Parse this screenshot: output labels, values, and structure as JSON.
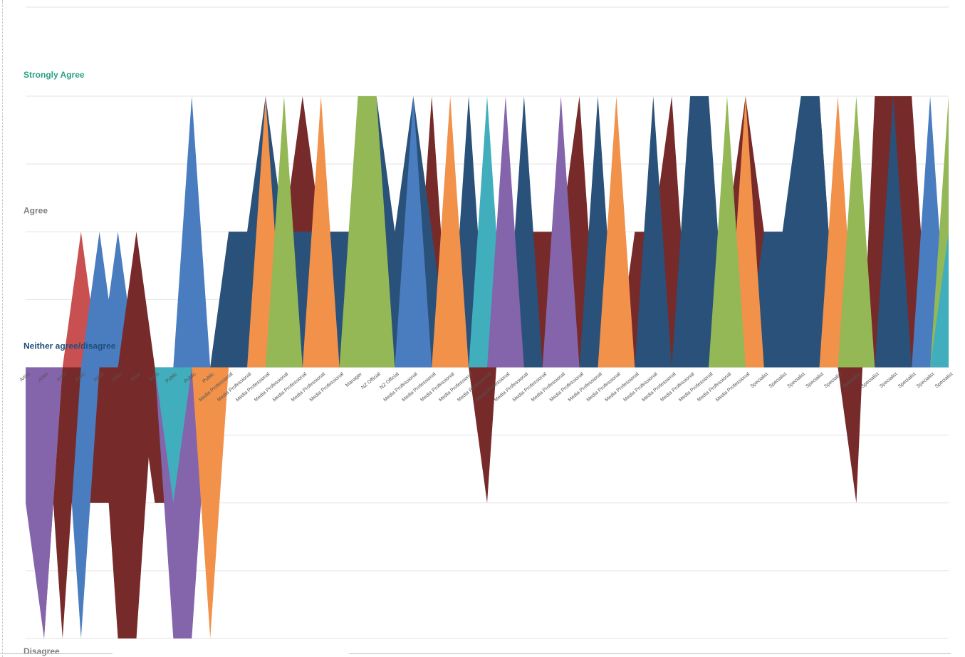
{
  "chart_data": {
    "type": "area",
    "y_levels": [
      "Disagree",
      "Neither agree/disagree",
      "Agree",
      "Strongly Agree"
    ],
    "ylim": [
      1,
      5
    ],
    "grid": true,
    "legend": "none",
    "colors": {
      "maroon": "#772a2a",
      "navy": "#29517a",
      "blue": "#4a7cc0",
      "orange": "#f1914a",
      "green": "#93b855",
      "teal": "#40aebd",
      "purple": "#8464ab",
      "red": "#c95050",
      "level_strongly_agree": "#2aa184",
      "level_neither": "#1f4e79",
      "level_other": "#7f7f7f"
    },
    "categories": [
      "Artist",
      "Artist",
      "Artist",
      "Artist",
      "Artist",
      "Artist",
      "Artist",
      "Artist",
      "Public",
      "Public",
      "Public",
      "Media Professional",
      "Media Professional",
      "Media Professional",
      "Media Professional",
      "Media Professional",
      "Media Professional",
      "Media Professional",
      "Manager",
      "NZ Official",
      "NZ Official",
      "Media Professional",
      "Media Professional",
      "Media Professional",
      "Media Professional",
      "Media Professional",
      "Media Professional",
      "Media Professional",
      "Media Professional",
      "Media Professional",
      "Media Professional",
      "Media Professional",
      "Media Professional",
      "Media Professional",
      "Media Professional",
      "Media Professional",
      "Media Professional",
      "Media Professional",
      "Media Professional",
      "Media Professional",
      "Specialist",
      "Specialist",
      "Specialist",
      "Specialist",
      "Specialist",
      "Specialist",
      "Specialist",
      "Specialist",
      "Specialist",
      "Specialist",
      "Specialist"
    ],
    "series": [
      {
        "color": "maroon",
        "values": [
          2,
          2,
          2,
          2,
          2,
          2,
          3,
          2,
          2,
          2,
          3,
          4,
          4,
          4,
          4,
          5,
          4,
          4,
          4,
          3,
          3,
          3,
          5,
          3,
          3,
          2,
          4,
          4,
          4,
          4,
          5,
          3,
          3,
          4,
          4,
          5,
          3,
          4,
          4,
          5,
          4,
          4,
          3,
          5,
          3,
          2,
          5,
          5,
          5,
          3,
          3
        ]
      },
      {
        "color": "navy",
        "values": [
          3,
          3,
          3,
          3,
          3,
          3,
          3,
          3,
          3,
          4,
          3,
          4,
          4,
          5,
          4,
          4,
          4,
          4,
          4,
          5,
          4,
          5,
          4,
          3,
          5,
          3,
          3,
          5,
          3,
          3,
          3,
          5,
          3,
          3,
          5,
          3,
          5,
          5,
          3,
          3,
          4,
          4,
          5,
          5,
          3,
          3,
          3,
          5,
          3,
          3,
          3
        ]
      },
      {
        "color": "blue",
        "values": [
          3,
          3,
          3,
          3,
          3,
          4,
          3,
          3,
          3,
          5,
          3,
          3,
          3,
          3,
          3,
          3,
          3,
          3,
          3,
          3,
          3,
          5,
          3,
          3,
          3,
          3,
          3,
          3,
          3,
          3,
          3,
          3,
          3,
          3,
          3,
          3,
          3,
          3,
          3,
          3,
          3,
          3,
          3,
          3,
          3,
          3,
          3,
          3,
          3,
          5,
          3
        ]
      },
      {
        "color": "orange",
        "values": [
          3,
          3,
          3,
          3,
          3,
          3,
          3,
          3,
          3,
          3,
          3,
          3,
          3,
          5,
          3,
          3,
          5,
          3,
          3,
          3,
          3,
          3,
          3,
          5,
          3,
          3,
          3,
          3,
          3,
          3,
          3,
          3,
          5,
          3,
          3,
          3,
          3,
          3,
          3,
          5,
          3,
          3,
          3,
          3,
          5,
          3,
          3,
          3,
          3,
          3,
          3
        ]
      },
      {
        "color": "green",
        "values": [
          3,
          3,
          3,
          3,
          3,
          3,
          3,
          3,
          3,
          3,
          3,
          3,
          3,
          3,
          5,
          3,
          3,
          3,
          5,
          5,
          3,
          3,
          3,
          3,
          3,
          3,
          3,
          3,
          3,
          3,
          3,
          3,
          3,
          3,
          3,
          3,
          3,
          3,
          5,
          3,
          3,
          3,
          3,
          3,
          3,
          5,
          3,
          3,
          3,
          3,
          5
        ]
      },
      {
        "color": "teal",
        "values": [
          3,
          3,
          3,
          3,
          3,
          3,
          3,
          3,
          3,
          3,
          3,
          3,
          3,
          3,
          3,
          3,
          3,
          3,
          3,
          3,
          3,
          3,
          3,
          3,
          3,
          5,
          3,
          3,
          3,
          3,
          3,
          3,
          3,
          3,
          3,
          3,
          3,
          3,
          3,
          3,
          3,
          3,
          3,
          3,
          3,
          3,
          3,
          3,
          3,
          3,
          4
        ]
      },
      {
        "color": "purple",
        "values": [
          3,
          3,
          3,
          3,
          3,
          3,
          3,
          3,
          3,
          3,
          3,
          3,
          3,
          3,
          3,
          3,
          3,
          3,
          3,
          3,
          3,
          3,
          3,
          3,
          3,
          3,
          5,
          3,
          3,
          5,
          3,
          3,
          3,
          3,
          3,
          3,
          3,
          3,
          3,
          3,
          3,
          3,
          3,
          3,
          3,
          3,
          3,
          3,
          3,
          3,
          3
        ]
      },
      {
        "color": "red",
        "values": [
          3,
          3,
          3,
          4,
          3,
          3,
          3,
          3,
          3,
          3,
          3,
          3,
          3,
          3,
          3,
          3,
          3,
          3,
          3,
          3,
          3,
          3,
          3,
          3,
          3,
          3,
          3,
          3,
          3,
          3,
          3,
          3,
          3,
          3,
          3,
          3,
          3,
          3,
          3,
          3,
          3,
          3,
          3,
          3,
          3,
          3,
          3,
          3,
          3,
          3,
          3
        ]
      },
      {
        "color": "blue",
        "values": [
          3,
          3,
          3,
          3,
          4,
          3,
          3,
          3,
          3,
          3,
          3,
          3,
          3,
          3,
          3,
          3,
          3,
          3,
          3,
          3,
          3,
          3,
          3,
          3,
          3,
          3,
          3,
          3,
          3,
          3,
          3,
          3,
          3,
          3,
          3,
          3,
          3,
          3,
          3,
          3,
          3,
          3,
          3,
          3,
          3,
          3,
          3,
          3,
          3,
          3,
          3
        ]
      },
      {
        "color": "maroon",
        "values": [
          3,
          3,
          3,
          3,
          3,
          3,
          4,
          3,
          3,
          3,
          3,
          3,
          3,
          3,
          3,
          3,
          3,
          3,
          3,
          3,
          3,
          3,
          3,
          3,
          3,
          3,
          3,
          3,
          3,
          3,
          3,
          3,
          3,
          3,
          3,
          3,
          3,
          3,
          3,
          3,
          3,
          3,
          3,
          3,
          3,
          3,
          3,
          3,
          3,
          3,
          3
        ]
      },
      {
        "color": "purple",
        "values": [
          3,
          1,
          3,
          3,
          3,
          3,
          3,
          3,
          1,
          1,
          3,
          3,
          3,
          3,
          3,
          3,
          3,
          3,
          3,
          3,
          3,
          3,
          3,
          3,
          3,
          3,
          3,
          3,
          3,
          3,
          3,
          3,
          3,
          3,
          3,
          3,
          3,
          3,
          3,
          3,
          3,
          3,
          3,
          3,
          3,
          3,
          3,
          3,
          3,
          3,
          3
        ]
      },
      {
        "color": "orange",
        "values": [
          3,
          3,
          3,
          3,
          3,
          3,
          3,
          3,
          3,
          3,
          1,
          3,
          3,
          3,
          3,
          3,
          3,
          3,
          3,
          3,
          3,
          3,
          3,
          3,
          3,
          3,
          3,
          3,
          3,
          3,
          3,
          3,
          3,
          3,
          3,
          3,
          3,
          3,
          3,
          3,
          3,
          3,
          3,
          3,
          3,
          3,
          3,
          3,
          3,
          3,
          3
        ]
      },
      {
        "color": "teal",
        "values": [
          3,
          3,
          3,
          3,
          3,
          3,
          3,
          3,
          2,
          3,
          3,
          3,
          3,
          3,
          3,
          3,
          3,
          3,
          3,
          3,
          3,
          3,
          3,
          3,
          3,
          3,
          3,
          3,
          3,
          3,
          3,
          3,
          3,
          3,
          3,
          3,
          3,
          3,
          3,
          3,
          3,
          3,
          3,
          3,
          3,
          3,
          3,
          3,
          3,
          3,
          3
        ]
      },
      {
        "color": "blue",
        "values": [
          3,
          3,
          3,
          1,
          3,
          3,
          3,
          3,
          3,
          3,
          3,
          3,
          3,
          3,
          3,
          3,
          3,
          3,
          3,
          3,
          3,
          3,
          3,
          3,
          3,
          3,
          3,
          3,
          3,
          3,
          3,
          3,
          3,
          3,
          3,
          3,
          3,
          3,
          3,
          3,
          3,
          3,
          3,
          3,
          3,
          3,
          3,
          3,
          3,
          3,
          3
        ]
      },
      {
        "color": "maroon",
        "values": [
          3,
          3,
          1,
          3,
          3,
          1,
          1,
          3,
          3,
          3,
          3,
          3,
          3,
          3,
          3,
          3,
          3,
          3,
          3,
          3,
          3,
          3,
          3,
          3,
          3,
          3,
          3,
          3,
          3,
          3,
          3,
          3,
          3,
          3,
          3,
          3,
          3,
          3,
          3,
          3,
          3,
          3,
          3,
          3,
          3,
          3,
          3,
          3,
          3,
          3,
          3
        ]
      },
      {
        "color": "orange",
        "values": [
          3,
          1,
          3,
          3,
          3,
          3,
          3,
          3,
          3,
          3,
          3,
          3,
          3,
          3,
          3,
          3,
          3,
          3,
          3,
          3,
          3,
          3,
          3,
          3,
          3,
          3,
          3,
          3,
          3,
          3,
          3,
          3,
          3,
          3,
          3,
          3,
          3,
          3,
          3,
          3,
          3,
          3,
          3,
          3,
          3,
          3,
          3,
          3,
          3,
          3,
          3
        ]
      },
      {
        "color": "purple",
        "values": [
          2,
          1,
          3,
          3,
          3,
          3,
          3,
          3,
          3,
          3,
          3,
          3,
          3,
          3,
          3,
          3,
          3,
          3,
          3,
          3,
          3,
          3,
          3,
          3,
          3,
          3,
          3,
          3,
          3,
          3,
          3,
          3,
          3,
          3,
          3,
          3,
          3,
          3,
          3,
          3,
          3,
          3,
          3,
          3,
          3,
          3,
          3,
          3,
          3,
          3,
          3
        ]
      }
    ]
  }
}
